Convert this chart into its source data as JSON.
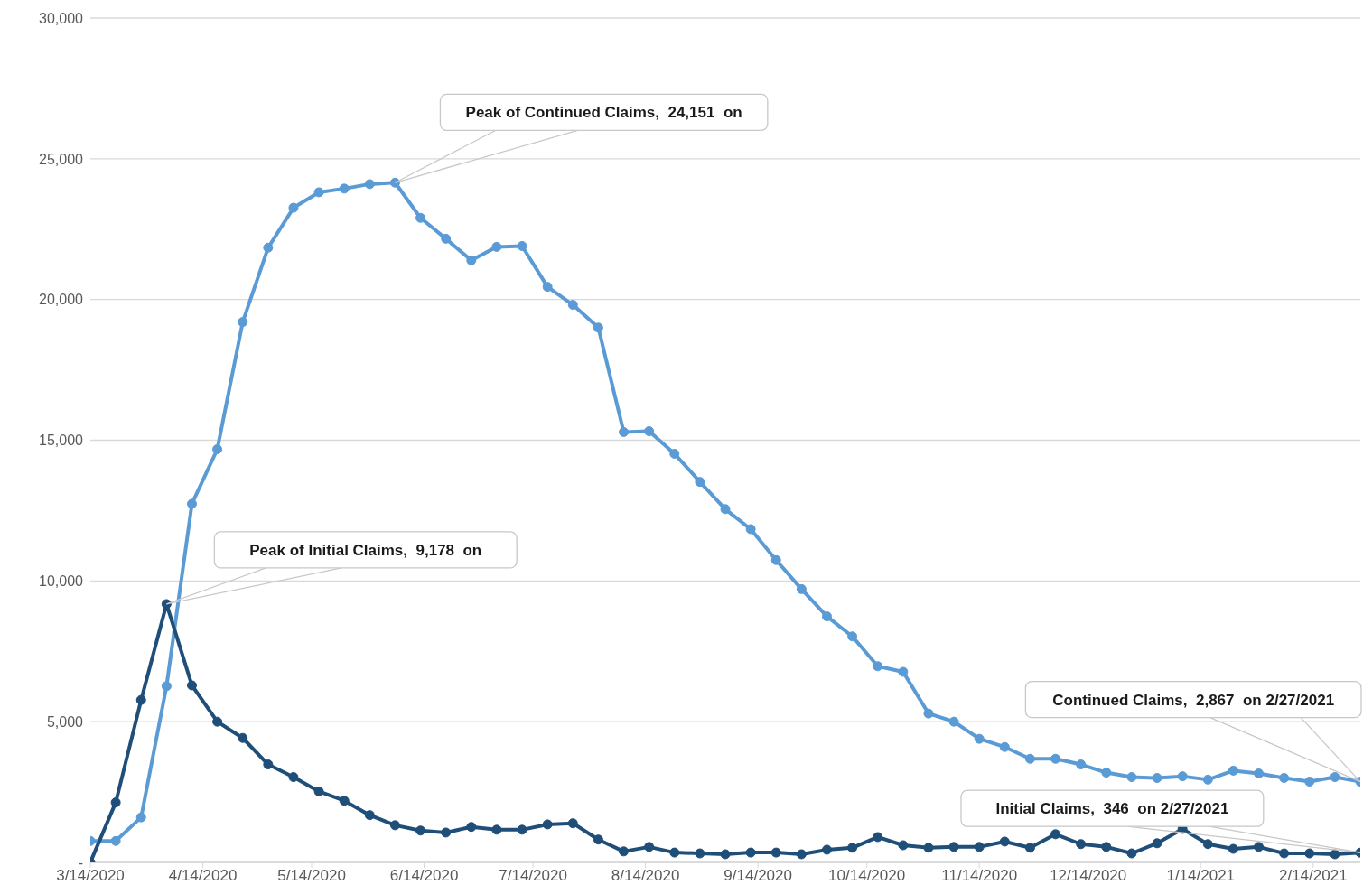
{
  "chart_data": {
    "type": "line",
    "x": [
      "2020-03-14",
      "2020-03-21",
      "2020-03-28",
      "2020-04-04",
      "2020-04-11",
      "2020-04-18",
      "2020-04-25",
      "2020-05-02",
      "2020-05-09",
      "2020-05-16",
      "2020-05-23",
      "2020-05-30",
      "2020-06-06",
      "2020-06-13",
      "2020-06-20",
      "2020-06-27",
      "2020-07-04",
      "2020-07-11",
      "2020-07-18",
      "2020-07-25",
      "2020-08-01",
      "2020-08-08",
      "2020-08-15",
      "2020-08-22",
      "2020-08-29",
      "2020-09-05",
      "2020-09-12",
      "2020-09-19",
      "2020-09-26",
      "2020-10-03",
      "2020-10-10",
      "2020-10-17",
      "2020-10-24",
      "2020-10-31",
      "2020-11-07",
      "2020-11-14",
      "2020-11-21",
      "2020-11-28",
      "2020-12-05",
      "2020-12-12",
      "2020-12-19",
      "2020-12-26",
      "2021-01-02",
      "2021-01-09",
      "2021-01-16",
      "2021-01-23",
      "2021-01-30",
      "2021-02-06",
      "2021-02-13",
      "2021-02-20",
      "2021-02-27"
    ],
    "series": [
      {
        "color": "#5b9bd5",
        "values": [
          760,
          760,
          1600,
          6260,
          12740,
          14680,
          19200,
          21840,
          23260,
          23810,
          23940,
          24100,
          24151,
          22900,
          22160,
          21390,
          21870,
          21900,
          20450,
          19810,
          19000,
          15290,
          15320,
          14520,
          13520,
          12550,
          11840,
          10740,
          9710,
          8740,
          8030,
          6970,
          6770,
          5290,
          5000,
          4390,
          4100,
          3680,
          3680,
          3480,
          3190,
          3030,
          3000,
          3060,
          2940,
          3260,
          3160,
          3000,
          2870,
          3030,
          2867
        ]
      },
      {
        "color": "#1f4e79",
        "values": [
          0,
          2130,
          5770,
          9178,
          6290,
          5000,
          4420,
          3480,
          3030,
          2520,
          2190,
          1680,
          1320,
          1130,
          1060,
          1260,
          1160,
          1160,
          1350,
          1390,
          810,
          390,
          550,
          350,
          320,
          290,
          350,
          350,
          290,
          450,
          520,
          900,
          610,
          520,
          550,
          550,
          740,
          520,
          1000,
          650,
          550,
          320,
          680,
          1190,
          650,
          480,
          550,
          320,
          320,
          290,
          346
        ]
      }
    ],
    "xlim": [
      "2020-03-14",
      "2021-02-27"
    ],
    "xticks": [
      {
        "value": "2020-03-14",
        "label": "3/14/2020"
      },
      {
        "value": "2020-04-14",
        "label": "4/14/2020"
      },
      {
        "value": "2020-05-14",
        "label": "5/14/2020"
      },
      {
        "value": "2020-06-14",
        "label": "6/14/2020"
      },
      {
        "value": "2020-07-14",
        "label": "7/14/2020"
      },
      {
        "value": "2020-08-14",
        "label": "8/14/2020"
      },
      {
        "value": "2020-09-14",
        "label": "9/14/2020"
      },
      {
        "value": "2020-10-14",
        "label": "10/14/2020"
      },
      {
        "value": "2020-11-14",
        "label": "11/14/2020"
      },
      {
        "value": "2020-12-14",
        "label": "12/14/2020"
      },
      {
        "value": "2021-01-14",
        "label": "1/14/2021"
      },
      {
        "value": "2021-02-14",
        "label": "2/14/2021"
      }
    ],
    "ylim": [
      0,
      30000
    ],
    "yticks": [
      {
        "value": 0,
        "label": "-"
      },
      {
        "value": 5000,
        "label": "5,000"
      },
      {
        "value": 10000,
        "label": "10,000"
      },
      {
        "value": 15000,
        "label": "15,000"
      },
      {
        "value": 20000,
        "label": "20,000"
      },
      {
        "value": 25000,
        "label": "25,000"
      },
      {
        "value": 30000,
        "label": "30,000"
      }
    ],
    "grid": "y",
    "marker": "circle",
    "line_style": "solid",
    "annotations": [
      {
        "text": "Peak of Continued Claims,  24,151  on",
        "x": "2020-06-06",
        "y": 24151
      },
      {
        "text": "Peak of Initial Claims,  9,178  on",
        "x": "2020-04-04",
        "y": 9178
      },
      {
        "text": "Continued Claims,  2,867  on 2/27/2021",
        "x": "2021-02-27",
        "y": 2867
      },
      {
        "text": "Initial Claims,  346  on 2/27/2021",
        "x": "2021-02-27",
        "y": 346
      }
    ]
  }
}
